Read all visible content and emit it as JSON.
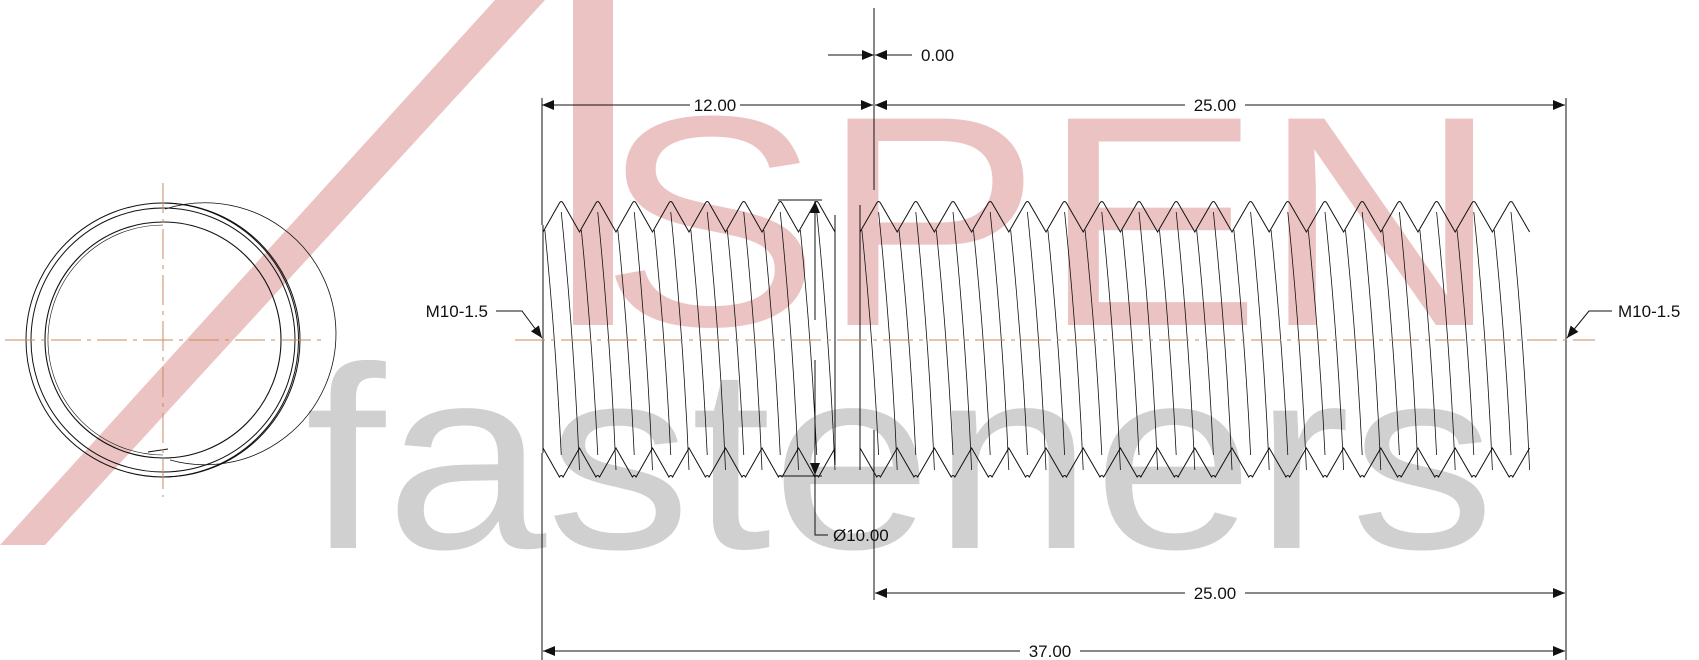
{
  "watermark": {
    "brand_top": "SPEN",
    "brand_bottom": "fasteners",
    "colors": {
      "brand_red": "#e9b8b8",
      "brand_gray": "#cbcbcb"
    }
  },
  "drawing": {
    "colors": {
      "line": "#111111",
      "centerline": "#c98a5a"
    },
    "dimensions": {
      "offset": "0.00",
      "left_length": "12.00",
      "right_length_top": "25.00",
      "diameter": "Ø10.00",
      "right_length_bottom": "25.00",
      "overall_length": "37.00"
    },
    "callouts": {
      "thread_left": "M10-1.5",
      "thread_right": "M10-1.5"
    }
  }
}
